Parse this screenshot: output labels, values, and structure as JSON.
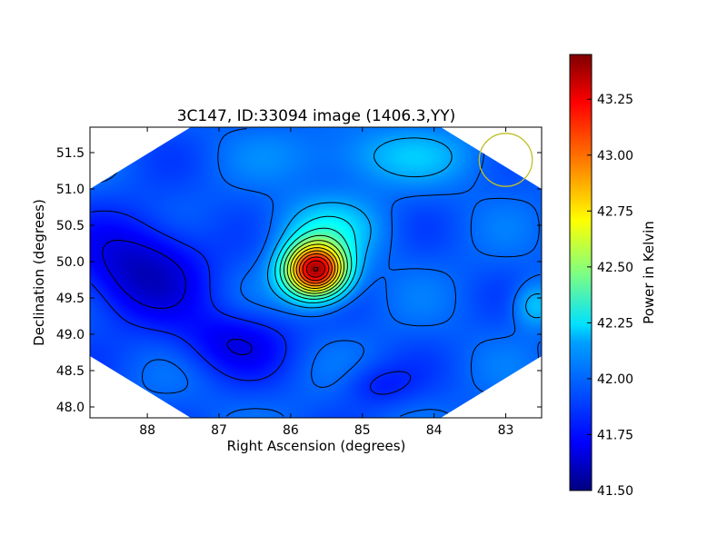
{
  "chart_data": {
    "type": "heatmap",
    "title": "3C147, ID:33094 image (1406.3,YY)",
    "xlabel": "Right Ascension (degrees)",
    "ylabel": "Declination (degrees)",
    "xlim": [
      88.8,
      82.5
    ],
    "ylim": [
      47.85,
      51.85
    ],
    "x_ticks": [
      88,
      87,
      86,
      85,
      84,
      83
    ],
    "x_tick_labels": [
      "88",
      "87",
      "86",
      "85",
      "84",
      "83"
    ],
    "y_ticks": [
      48.0,
      48.5,
      49.0,
      49.5,
      50.0,
      50.5,
      51.0,
      51.5
    ],
    "y_tick_labels": [
      "48.0",
      "48.5",
      "49.0",
      "49.5",
      "50.0",
      "50.5",
      "51.0",
      "51.5"
    ],
    "grid": false,
    "colormap": "jet",
    "colorbar": {
      "label": "Power in Kelvin",
      "range": [
        41.5,
        43.45
      ],
      "ticks": [
        41.5,
        41.75,
        42.0,
        42.25,
        42.5,
        42.75,
        43.0,
        43.25
      ],
      "tick_labels": [
        "41.50",
        "41.75",
        "42.00",
        "42.25",
        "42.50",
        "42.75",
        "43.00",
        "43.25"
      ]
    },
    "field_boundary": "hexagon",
    "source_peak": {
      "ra": 85.65,
      "dec": 49.88,
      "value": 43.45
    },
    "contour_count": 14,
    "beam_marker": {
      "ra": 83.0,
      "dec": 51.4,
      "radius_deg": 0.37,
      "color": "#bfbf2a"
    }
  }
}
